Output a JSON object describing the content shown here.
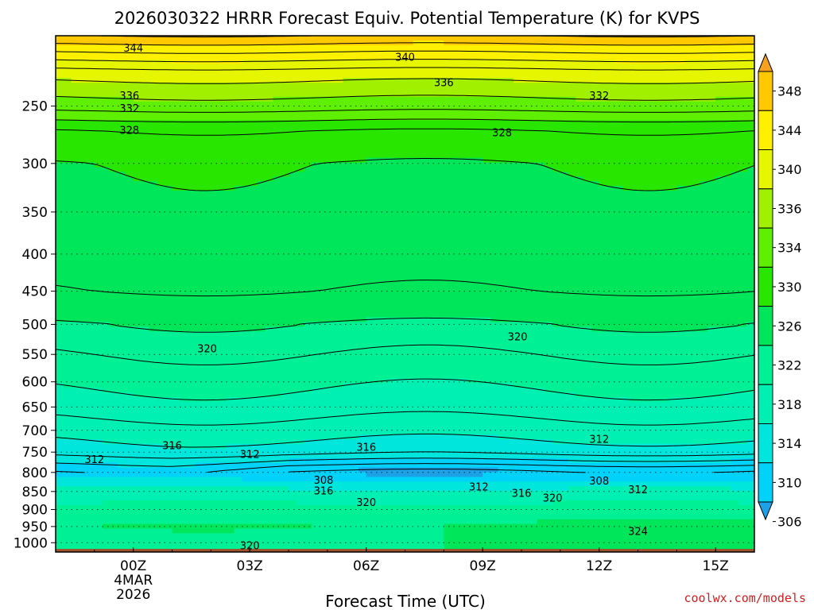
{
  "chart_data": {
    "type": "contour",
    "title": "2026030322 HRRR Forecast Equiv. Potential Temperature (K) for KVPS",
    "xlabel": "Forecast Time (UTC)",
    "ylabel": "",
    "watermark": "coolwx.com/models",
    "x_ticks": [
      {
        "hour": 0,
        "label": "00Z",
        "sub1": "4MAR",
        "sub2": "2026"
      },
      {
        "hour": 3,
        "label": "03Z"
      },
      {
        "hour": 6,
        "label": "06Z"
      },
      {
        "hour": 9,
        "label": "09Z"
      },
      {
        "hour": 12,
        "label": "12Z"
      },
      {
        "hour": 15,
        "label": "15Z"
      }
    ],
    "xlim_hours": [
      -2,
      16
    ],
    "y_axis_scale": "log-pressure (hPa)",
    "ylim_hpa": [
      1030,
      200
    ],
    "y_ticks": [
      250,
      300,
      350,
      400,
      450,
      500,
      550,
      600,
      650,
      700,
      750,
      800,
      850,
      900,
      950,
      1000
    ],
    "surface_hpa": 1020,
    "surface_color": "#a0522d",
    "colorbar": {
      "ticks": [
        306,
        310,
        314,
        318,
        322,
        326,
        330,
        334,
        336,
        340,
        344,
        348
      ],
      "bands": [
        {
          "lo": 302,
          "hi": 306,
          "color": "#1ea0e6"
        },
        {
          "lo": 306,
          "hi": 310,
          "color": "#00d2fa"
        },
        {
          "lo": 310,
          "hi": 314,
          "color": "#00e6dc"
        },
        {
          "lo": 314,
          "hi": 318,
          "color": "#00f0b4"
        },
        {
          "lo": 318,
          "hi": 322,
          "color": "#00f096"
        },
        {
          "lo": 322,
          "hi": 326,
          "color": "#00e65a"
        },
        {
          "lo": 326,
          "hi": 330,
          "color": "#28e600"
        },
        {
          "lo": 330,
          "hi": 334,
          "color": "#5ef000"
        },
        {
          "lo": 334,
          "hi": 336,
          "color": "#a0f000"
        },
        {
          "lo": 336,
          "hi": 340,
          "color": "#e6f500"
        },
        {
          "lo": 340,
          "hi": 344,
          "color": "#fff000"
        },
        {
          "lo": 344,
          "hi": 348,
          "color": "#ffc800"
        },
        {
          "lo": 348,
          "hi": 352,
          "color": "#f5a01e"
        }
      ]
    },
    "contour_interval_K": 2,
    "theta_e_profile": [
      {
        "p": 200,
        "theta_e": 346
      },
      {
        "p": 225,
        "theta_e": 337
      },
      {
        "p": 250,
        "theta_e": 333
      },
      {
        "p": 270,
        "theta_e": 328
      },
      {
        "p": 300,
        "theta_e": 326
      },
      {
        "p": 400,
        "theta_e": 325
      },
      {
        "p": 450,
        "theta_e": 324
      },
      {
        "p": 550,
        "theta_e": 320
      },
      {
        "p": 650,
        "theta_e": 317
      },
      {
        "p": 750,
        "theta_e": 313
      },
      {
        "p": 800,
        "theta_e": 308
      },
      {
        "p": 850,
        "theta_e": 316
      },
      {
        "p": 950,
        "theta_e": 322
      },
      {
        "p": 1000,
        "theta_e": 320
      }
    ],
    "contour_labels": [
      {
        "text": "344",
        "hour": 0.0,
        "p": 208
      },
      {
        "text": "340",
        "hour": 7.0,
        "p": 214
      },
      {
        "text": "336",
        "hour": 8.0,
        "p": 232
      },
      {
        "text": "336",
        "hour": -0.1,
        "p": 242
      },
      {
        "text": "332",
        "hour": -0.1,
        "p": 252
      },
      {
        "text": "332",
        "hour": 12.0,
        "p": 242
      },
      {
        "text": "328",
        "hour": -0.1,
        "p": 270
      },
      {
        "text": "328",
        "hour": 9.5,
        "p": 272
      },
      {
        "text": "320",
        "hour": 1.9,
        "p": 540
      },
      {
        "text": "320",
        "hour": 9.9,
        "p": 520
      },
      {
        "text": "316",
        "hour": 1.0,
        "p": 735
      },
      {
        "text": "316",
        "hour": 6.0,
        "p": 738
      },
      {
        "text": "312",
        "hour": -1.0,
        "p": 768
      },
      {
        "text": "312",
        "hour": 3.0,
        "p": 755
      },
      {
        "text": "312",
        "hour": 12.0,
        "p": 720
      },
      {
        "text": "308",
        "hour": 4.9,
        "p": 820
      },
      {
        "text": "316",
        "hour": 4.9,
        "p": 848
      },
      {
        "text": "312",
        "hour": 8.9,
        "p": 838
      },
      {
        "text": "308",
        "hour": 12.0,
        "p": 822
      },
      {
        "text": "312",
        "hour": 13.0,
        "p": 845
      },
      {
        "text": "316",
        "hour": 10.0,
        "p": 855
      },
      {
        "text": "320",
        "hour": 10.8,
        "p": 868
      },
      {
        "text": "320",
        "hour": 6.0,
        "p": 880
      },
      {
        "text": "324",
        "hour": 13.0,
        "p": 965
      },
      {
        "text": "320",
        "hour": 3.0,
        "p": 1010
      }
    ]
  }
}
